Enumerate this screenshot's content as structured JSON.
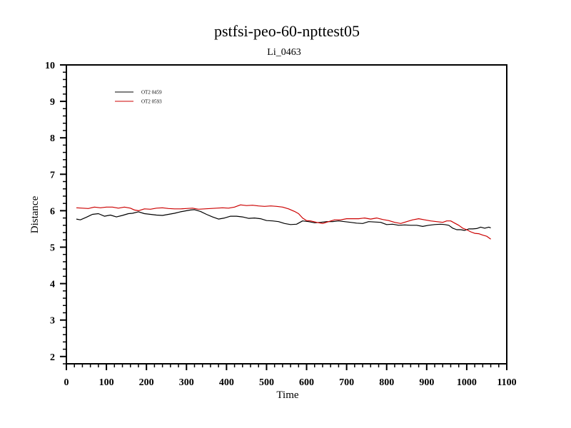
{
  "chart_data": {
    "type": "line",
    "title": "pstfsi-peo-60-npttest05",
    "subtitle": "Li_0463",
    "xlabel": "Time",
    "ylabel": "Distance",
    "xlim": [
      0,
      1100
    ],
    "ylim": [
      1.8,
      10
    ],
    "xticks": [
      0,
      100,
      200,
      300,
      400,
      500,
      600,
      700,
      800,
      900,
      1000,
      1100
    ],
    "yticks": [
      2,
      3,
      4,
      5,
      6,
      7,
      8,
      9,
      10
    ],
    "grid": false,
    "legend_position": "top-left",
    "series": [
      {
        "name": "OT2 0459",
        "color": "#000000",
        "x": [
          25,
          35,
          50,
          65,
          80,
          95,
          110,
          125,
          140,
          155,
          165,
          180,
          195,
          210,
          225,
          240,
          255,
          270,
          285,
          300,
          310,
          320,
          335,
          350,
          365,
          380,
          395,
          410,
          425,
          440,
          455,
          470,
          485,
          500,
          515,
          530,
          545,
          560,
          575,
          590,
          605,
          620,
          635,
          650,
          665,
          680,
          695,
          710,
          725,
          740,
          755,
          770,
          785,
          800,
          815,
          830,
          845,
          860,
          875,
          890,
          905,
          920,
          935,
          945,
          955,
          965,
          975,
          985,
          995,
          1005,
          1015,
          1025,
          1035,
          1045,
          1055,
          1060
        ],
        "values": [
          5.77,
          5.75,
          5.82,
          5.9,
          5.92,
          5.85,
          5.88,
          5.83,
          5.87,
          5.92,
          5.93,
          5.97,
          5.92,
          5.9,
          5.88,
          5.87,
          5.9,
          5.93,
          5.97,
          6.0,
          6.02,
          6.03,
          5.98,
          5.9,
          5.83,
          5.77,
          5.8,
          5.85,
          5.85,
          5.83,
          5.79,
          5.8,
          5.78,
          5.73,
          5.72,
          5.7,
          5.65,
          5.62,
          5.63,
          5.72,
          5.7,
          5.67,
          5.68,
          5.7,
          5.7,
          5.72,
          5.7,
          5.68,
          5.66,
          5.65,
          5.7,
          5.69,
          5.68,
          5.62,
          5.63,
          5.6,
          5.61,
          5.6,
          5.6,
          5.57,
          5.6,
          5.62,
          5.63,
          5.62,
          5.6,
          5.52,
          5.48,
          5.48,
          5.46,
          5.5,
          5.5,
          5.51,
          5.55,
          5.52,
          5.55,
          5.53
        ]
      },
      {
        "name": "OT2 0593",
        "color": "#cc0000",
        "x": [
          25,
          40,
          55,
          70,
          85,
          100,
          115,
          130,
          145,
          160,
          170,
          180,
          195,
          210,
          225,
          240,
          255,
          270,
          285,
          300,
          315,
          330,
          345,
          360,
          375,
          390,
          405,
          420,
          435,
          450,
          465,
          480,
          495,
          510,
          525,
          540,
          555,
          570,
          580,
          590,
          600,
          610,
          625,
          640,
          655,
          670,
          685,
          700,
          715,
          730,
          745,
          760,
          775,
          790,
          805,
          820,
          835,
          850,
          865,
          880,
          895,
          910,
          925,
          940,
          950,
          960,
          970,
          980,
          990,
          1000,
          1010,
          1020,
          1030,
          1040,
          1050,
          1060
        ],
        "values": [
          6.08,
          6.07,
          6.06,
          6.1,
          6.08,
          6.1,
          6.1,
          6.07,
          6.1,
          6.07,
          6.02,
          6.0,
          6.05,
          6.04,
          6.07,
          6.08,
          6.06,
          6.05,
          6.05,
          6.06,
          6.07,
          6.04,
          6.05,
          6.06,
          6.07,
          6.08,
          6.07,
          6.1,
          6.16,
          6.14,
          6.15,
          6.13,
          6.12,
          6.13,
          6.12,
          6.1,
          6.05,
          5.98,
          5.92,
          5.8,
          5.73,
          5.72,
          5.68,
          5.65,
          5.7,
          5.75,
          5.75,
          5.78,
          5.78,
          5.78,
          5.8,
          5.77,
          5.8,
          5.76,
          5.73,
          5.68,
          5.65,
          5.7,
          5.75,
          5.78,
          5.75,
          5.72,
          5.7,
          5.68,
          5.72,
          5.72,
          5.66,
          5.6,
          5.52,
          5.48,
          5.42,
          5.38,
          5.37,
          5.33,
          5.3,
          5.22
        ]
      }
    ]
  }
}
